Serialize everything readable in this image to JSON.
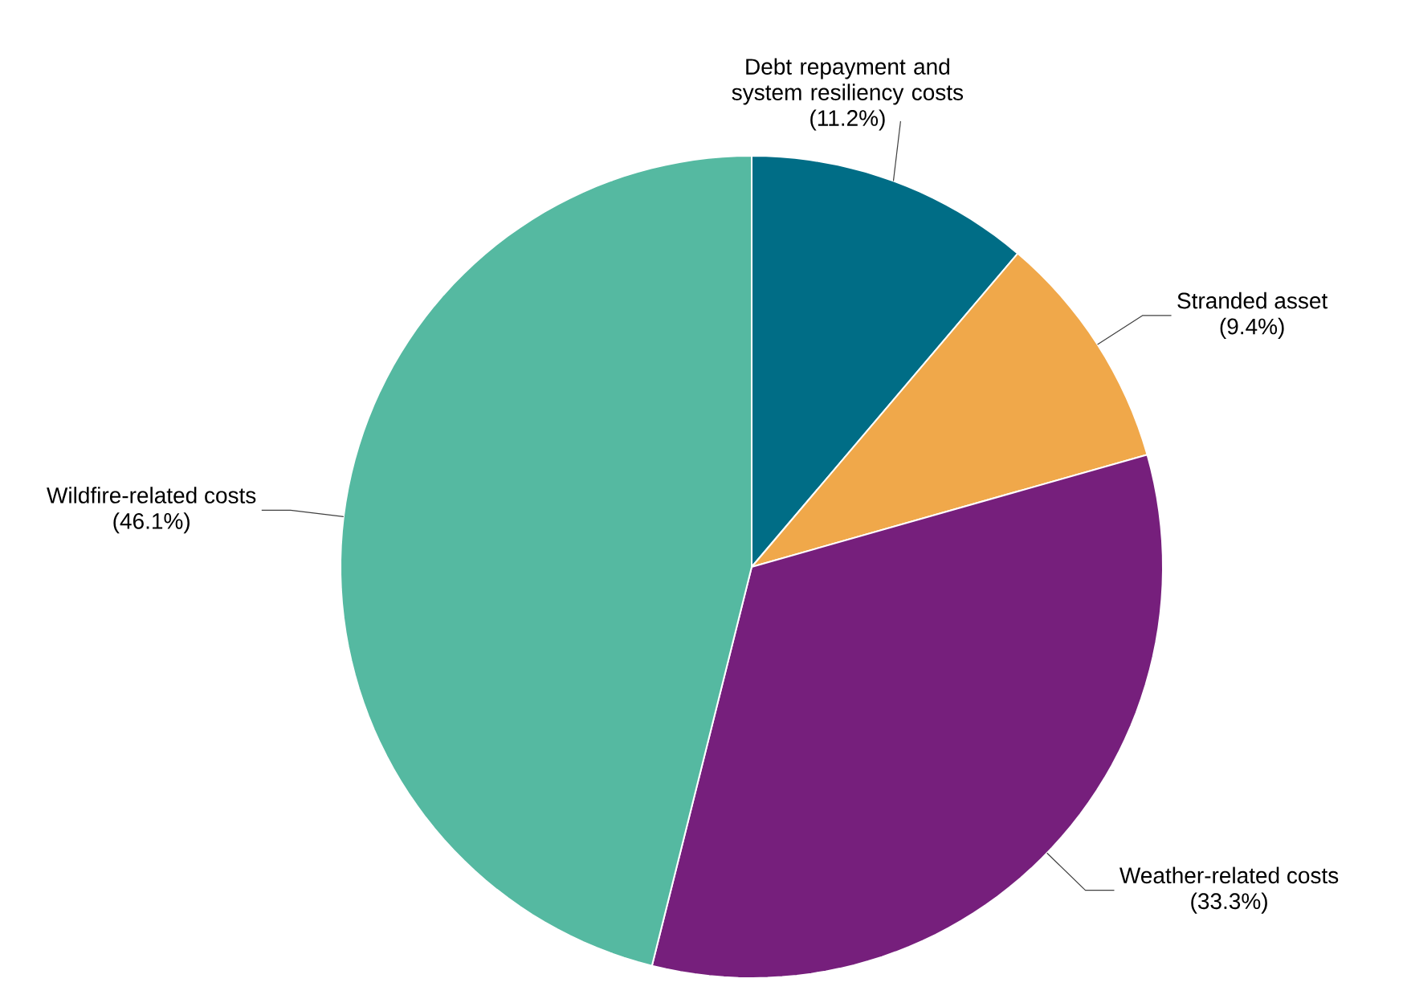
{
  "chart_data": {
    "type": "pie",
    "categories": [
      "Debt repayment and system resiliency costs",
      "Stranded asset",
      "Weather-related costs",
      "Wildfire-related costs"
    ],
    "values": [
      11.2,
      9.4,
      33.3,
      46.1
    ],
    "value_labels": [
      "(11.2%)",
      "(9.4%)",
      "(33.3%)",
      "(46.1%)"
    ],
    "colors": [
      "#006d86",
      "#f0a84a",
      "#761f7c",
      "#55b9a1"
    ]
  }
}
